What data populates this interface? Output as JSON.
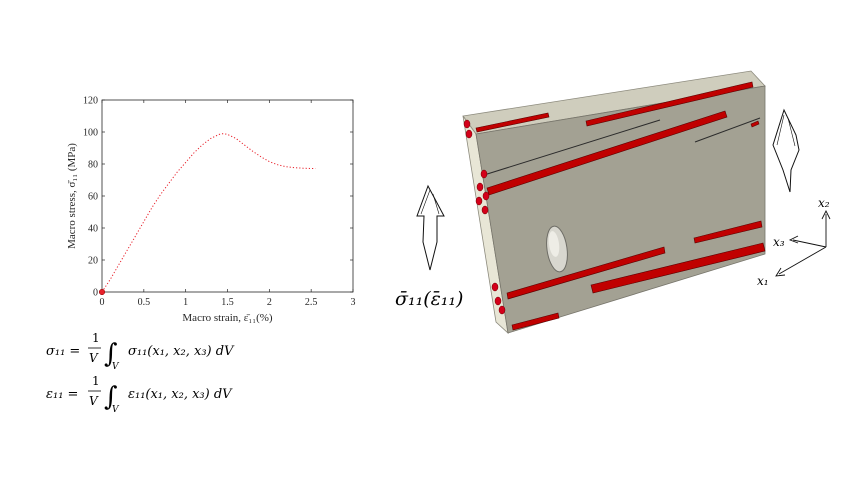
{
  "chart_data": {
    "type": "line",
    "title": "",
    "xlabel": "Macro strain, ε̄₁₁(%)",
    "ylabel": "Macro stress, σ̄₁₁ (MPa)",
    "xlim": [
      0,
      3
    ],
    "ylim": [
      0,
      120
    ],
    "xticks": [
      0,
      0.5,
      1,
      1.5,
      2,
      2.5,
      3
    ],
    "xtick_labels": [
      "0",
      "0.5",
      "1",
      "1.5",
      "2",
      "2.5",
      "3"
    ],
    "yticks": [
      0,
      20,
      40,
      60,
      80,
      100,
      120
    ],
    "ytick_labels": [
      "0",
      "20",
      "40",
      "60",
      "80",
      "100",
      "120"
    ],
    "grid": false,
    "series": [
      {
        "color": "#e8212b",
        "style": "dotted",
        "x": [
          0,
          0.1,
          0.2,
          0.3,
          0.4,
          0.5,
          0.6,
          0.7,
          0.8,
          0.9,
          1.0,
          1.1,
          1.2,
          1.3,
          1.4,
          1.45,
          1.5,
          1.6,
          1.7,
          1.8,
          1.9,
          2.0,
          2.1,
          2.2,
          2.3,
          2.4,
          2.5,
          2.55
        ],
        "y": [
          0,
          8,
          17,
          26,
          35,
          44,
          53,
          61,
          68,
          75,
          81,
          87,
          92,
          96,
          98.5,
          99,
          98.5,
          96,
          92,
          88,
          84.5,
          81.5,
          79.5,
          78.3,
          77.7,
          77.4,
          77.2,
          77.2
        ]
      }
    ],
    "marker": {
      "x": 0,
      "y": 0,
      "color": "#e8212b"
    }
  },
  "equations": {
    "sigma_lhs": "σ₁₁ =",
    "sigma_rhs": "σ₁₁(x₁, x₂, x₃) dV",
    "eps_lhs": "ε₁₁ =",
    "eps_rhs": "ε₁₁(x₁, x₂, x₃) dV",
    "frac_num": "1",
    "frac_den": "V",
    "int_sub": "V"
  },
  "illustration": {
    "load_label": "σ̄₁₁(ε̄₁₁)",
    "axes": {
      "x1": "x₁",
      "x2": "x₂",
      "x3": "x₃"
    },
    "colors": {
      "matrix_face": "#a3a193",
      "side_face": "#e8e6d6",
      "top_face": "#cfcdbd",
      "fiber": "#c00000",
      "void": "#d8d7cf"
    }
  }
}
